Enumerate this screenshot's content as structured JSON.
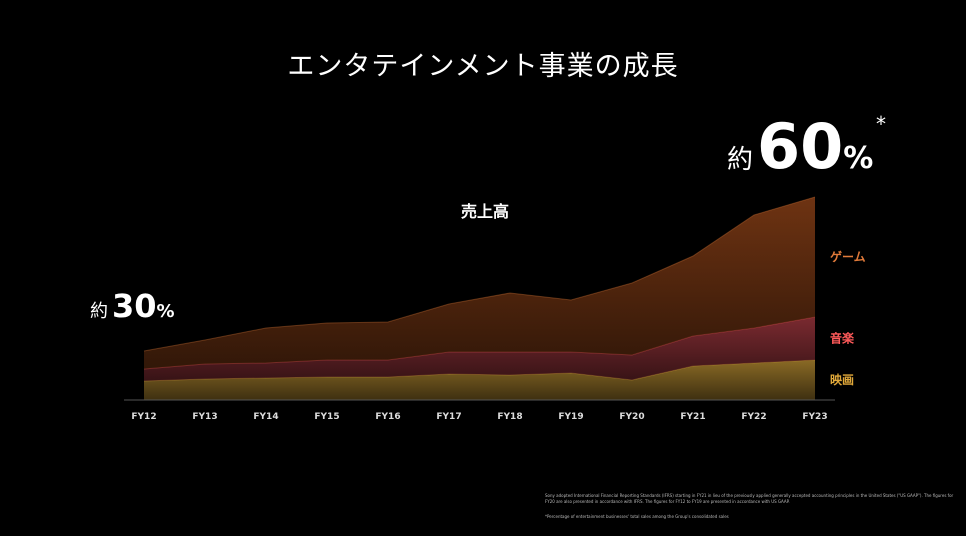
{
  "slide": {
    "title": "エンタテインメント事業の成長",
    "sales_label": "売上高",
    "share_start": {
      "prefix": "約",
      "value": "30",
      "unit": "%"
    },
    "share_end": {
      "prefix": "約",
      "value": "60",
      "unit": "%",
      "mark": "*"
    },
    "footnotes": [
      "Sony adopted International Financial Reporting Standards (IFRS) starting in FY21 in lieu of the previously applied generally accepted accounting principles in the United States (\"US GAAP\"). The figures for FY20 are also presented in accordance with IFRS. The figures for FY12 to FY19 are presented in accordance with US GAAP.",
      "*Percentage of entertainment businesses' total sales among the Group's consolidated sales"
    ]
  },
  "chart_data": {
    "type": "area",
    "stacked": true,
    "categories": [
      "FY12",
      "FY13",
      "FY14",
      "FY15",
      "FY16",
      "FY17",
      "FY18",
      "FY19",
      "FY20",
      "FY21",
      "FY22",
      "FY23"
    ],
    "ylim": [
      0,
      200
    ],
    "series": [
      {
        "name": "映画",
        "color": "#8a6a25",
        "label_color": "#e0a83a",
        "values": [
          19,
          21,
          22,
          23,
          23,
          26,
          25,
          27,
          20,
          34,
          37,
          40
        ]
      },
      {
        "name": "音楽",
        "color": "#7a2a30",
        "label_color": "#ff5a5a",
        "values": [
          12,
          15,
          15,
          17,
          17,
          22,
          23,
          21,
          25,
          30,
          35,
          43
        ]
      },
      {
        "name": "ゲーム",
        "color": "#6e3312",
        "label_color": "#e07a3a",
        "values": [
          18,
          24,
          35,
          37,
          38,
          48,
          59,
          52,
          72,
          80,
          113,
          120
        ]
      }
    ],
    "grid": false,
    "legend": "right"
  }
}
